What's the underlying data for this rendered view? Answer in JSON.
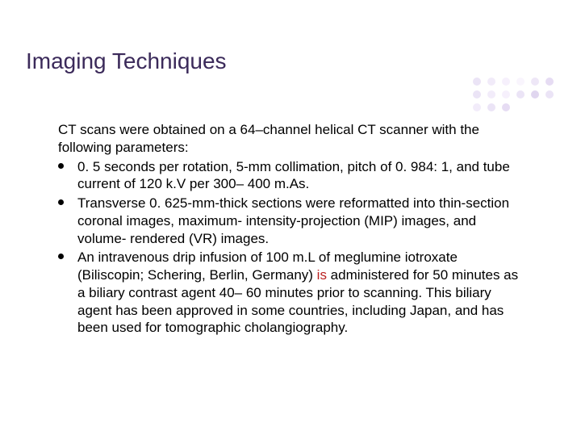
{
  "title": {
    "text": "Imaging Techniques",
    "color": "#3b2a5a",
    "fontsize": 28
  },
  "body": {
    "fontsize": 17,
    "text_color": "#000000",
    "highlight_color": "#bb2222",
    "intro": "CT scans were obtained on a 64–channel helical CT scanner with the following parameters:",
    "items": [
      {
        "text": "0. 5 seconds per rotation, 5-mm collimation, pitch  of 0. 984: 1, and tube current of 120 k.V per 300– 400 m.As."
      },
      {
        "text": "Transverse 0. 625-mm-thick sections were reformatted into thin-section coronal images, maximum- intensity-projection (MIP) images, and volume- rendered (VR) images."
      },
      {
        "pre": "An intravenous drip infusion of 100 m.L of meglumine iotroxate (Biliscopin; Schering, Berlin, Germany) ",
        "hl": "is",
        "post": " administered for 50 minutes as a biliary contrast agent 40– 60 minutes prior to scanning. This biliary agent has been approved in some countries, including Japan, and has been used for tomographic cholangiography."
      }
    ]
  },
  "decor": {
    "dot_colors": [
      "#c7b3e6",
      "#d9c7f0",
      "#e6d7f7",
      "#efe3fb",
      "#d0bceb",
      "#b99ddf",
      "#c7b3e6",
      "#dccaf2",
      "#e6d7f7",
      "#c7b3e6",
      "#a98dd4",
      "#c7b3e6",
      "#dccaf2",
      "#c7b3e6",
      "#b99ddf"
    ]
  }
}
